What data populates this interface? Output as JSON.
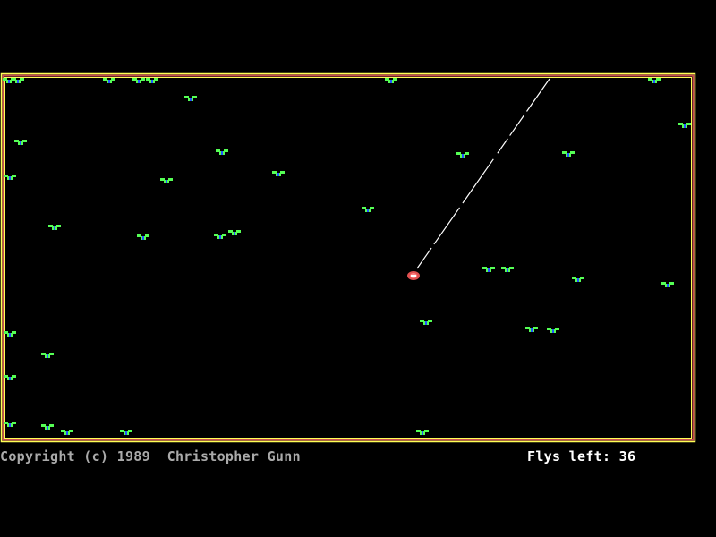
{
  "game": {
    "copyright": "Copyright (c) 1989  Christopher Gunn",
    "flys_left_label": "Flys left:",
    "flys_left": "36"
  },
  "colors": {
    "background": "#000000",
    "border_outer": "#ffff55",
    "border_middle": "#c85050",
    "fly_body": "#55ff55",
    "fly_center": "#2255ff",
    "frog": "#e05050",
    "tongue": "#ffffff"
  },
  "icons": {
    "fly": "fly-sprite",
    "frog": "frog-sprite"
  }
}
